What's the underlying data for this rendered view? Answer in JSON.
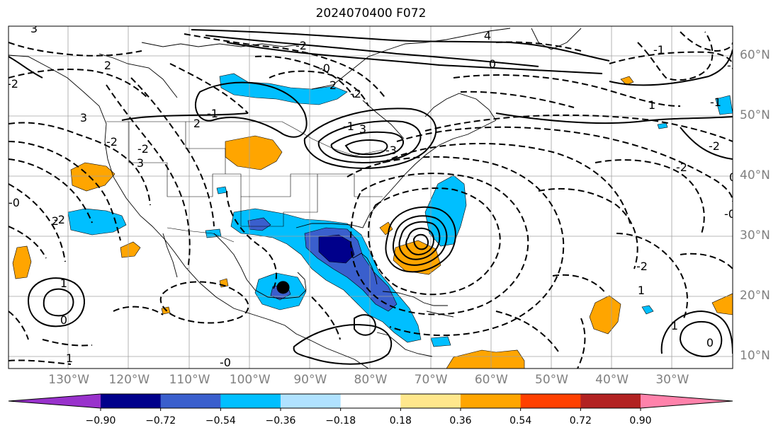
{
  "title": "2024070400 F072",
  "map": {
    "projection": "equirectangular",
    "extent": {
      "lon_min": -140,
      "lon_max": -20,
      "lat_min": 8,
      "lat_max": 65
    },
    "lat_ticks": [
      "60°N",
      "50°N",
      "40°N",
      "30°N",
      "20°N",
      "10°N"
    ],
    "lon_ticks": [
      "130°W",
      "120°W",
      "110°W",
      "100°W",
      "90°W",
      "80°W",
      "70°W",
      "60°W",
      "50°W",
      "40°W",
      "30°W"
    ],
    "gridlines": true,
    "marker": {
      "type": "filled-circle",
      "lon": -94.5,
      "lat": 21.5,
      "color": "#000000"
    }
  },
  "colorbar": {
    "extend": "both",
    "boundaries": [
      "−0.90",
      "−0.72",
      "−0.54",
      "−0.36",
      "−0.18",
      "0.18",
      "0.36",
      "0.54",
      "0.72",
      "0.90"
    ],
    "colors": [
      "#9932cc",
      "#00008b",
      "#3a5fcd",
      "#00bfff",
      "#b0e2ff",
      "#ffffff",
      "#ffe78c",
      "#ffa500",
      "#ff4000",
      "#b22222",
      "#ff82ab"
    ]
  },
  "contour_labels": [
    "3",
    "2",
    "-2",
    "3",
    "2",
    "3",
    "-0",
    "-2",
    "3",
    "4",
    "0",
    "-1",
    "-1",
    "-3",
    "2",
    "2",
    "-1",
    "-3",
    "-2",
    "-1",
    "-2",
    "1",
    "-2",
    "0",
    "-2",
    "-0",
    "-2",
    "1",
    "0",
    "1",
    "-2",
    "-2",
    "-0",
    "1",
    "0",
    "1",
    "-0"
  ]
}
